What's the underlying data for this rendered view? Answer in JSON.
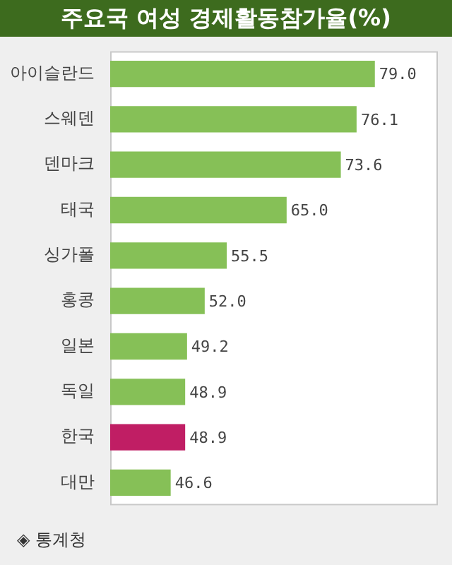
{
  "chart_data": {
    "type": "bar",
    "orientation": "horizontal",
    "title": "주요국 여성 경제활동참가율(%)",
    "categories": [
      "아이슬란드",
      "스웨덴",
      "덴마크",
      "태국",
      "싱가폴",
      "홍콩",
      "일본",
      "독일",
      "한국",
      "대만"
    ],
    "values": [
      79.0,
      76.1,
      73.6,
      65.0,
      55.5,
      52.0,
      49.2,
      48.9,
      48.9,
      46.6
    ],
    "value_labels": [
      "79.0",
      "76.1",
      "73.6",
      "65.0",
      "55.5",
      "52.0",
      "49.2",
      "48.9",
      "48.9",
      "46.6"
    ],
    "colors": [
      "#86c057",
      "#86c057",
      "#86c057",
      "#86c057",
      "#86c057",
      "#86c057",
      "#86c057",
      "#86c057",
      "#c01e64",
      "#86c057"
    ],
    "xlim": [
      37,
      89
    ],
    "legend": false,
    "annotations": [
      "◈ 통계청"
    ]
  }
}
